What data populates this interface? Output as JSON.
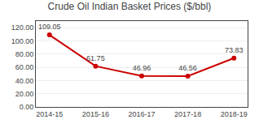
{
  "chart_data": {
    "type": "line",
    "title": "Crude Oil Indian Basket Prices ($/bbl)",
    "categories": [
      "2014-15",
      "2015-16",
      "2016-17",
      "2017-18",
      "2018-19"
    ],
    "values": [
      109.05,
      61.75,
      46.96,
      46.56,
      73.83
    ],
    "color": "#cc0000",
    "marker": "circle",
    "ylim": [
      0,
      130
    ],
    "yticks": [
      {
        "value": 0,
        "label": "0.00"
      },
      {
        "value": 20,
        "label": "20.00"
      },
      {
        "value": 40,
        "label": "40.00"
      },
      {
        "value": 60,
        "label": "60.00"
      },
      {
        "value": 80,
        "label": "80.00"
      },
      {
        "value": 100,
        "label": "100.00"
      },
      {
        "value": 120,
        "label": "120.00"
      }
    ],
    "grid": true,
    "data_labels": true
  }
}
